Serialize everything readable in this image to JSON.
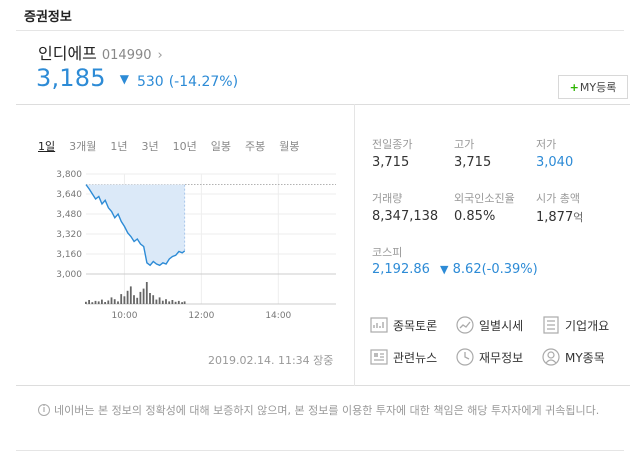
{
  "section_title": "증권정보",
  "stock": {
    "name": "인디에프",
    "code": "014990",
    "price": "3,185",
    "change": "530",
    "change_pct": "(-14.27%)"
  },
  "my_button_label": "MY등록",
  "tabs": [
    "1일",
    "3개월",
    "1년",
    "3년",
    "10년",
    "일봉",
    "주봉",
    "월봉"
  ],
  "timestamp": "2019.02.14. 11:34 장중",
  "info": {
    "prev_close": {
      "label": "전일종가",
      "value": "3,715"
    },
    "high": {
      "label": "고가",
      "value": "3,715"
    },
    "low": {
      "label": "저가",
      "value": "3,040"
    },
    "volume": {
      "label": "거래량",
      "value": "8,347,138"
    },
    "foreign": {
      "label": "외국인소진율",
      "value": "0.85%"
    },
    "market_cap": {
      "label": "시가 총액",
      "value": "1,877",
      "unit": "억"
    },
    "kospi": {
      "label": "코스피",
      "value": "2,192.86",
      "change": "8.62(-0.39%)"
    }
  },
  "links": [
    {
      "label": "종목토론",
      "icon": "discussion-icon"
    },
    {
      "label": "일별시세",
      "icon": "trend-icon"
    },
    {
      "label": "기업개요",
      "icon": "document-list-icon"
    },
    {
      "label": "관련뉴스",
      "icon": "news-icon"
    },
    {
      "label": "재무정보",
      "icon": "clock-icon"
    },
    {
      "label": "MY종목",
      "icon": "person-icon"
    }
  ],
  "notice": "네이버는 본 정보의 정확성에 대해 보증하지 않으며, 본 정보를 이용한 투자에 대한 책임은 해당 투자자에게 귀속됩니다.",
  "colors": {
    "down": "#2d8bd6",
    "add": "#2db400",
    "area": "#dbe9f8"
  },
  "chart_data": {
    "type": "area",
    "y_ticks": [
      "3,800",
      "3,640",
      "3,480",
      "3,320",
      "3,160",
      "3,000"
    ],
    "x_ticks": [
      "10:00",
      "12:00",
      "14:00"
    ],
    "ylim": [
      3000,
      3800
    ],
    "prev_close": 3715,
    "x": [
      "09:00",
      "09:05",
      "09:10",
      "09:15",
      "09:20",
      "09:25",
      "09:30",
      "09:35",
      "09:40",
      "09:45",
      "09:50",
      "09:55",
      "10:00",
      "10:05",
      "10:10",
      "10:15",
      "10:20",
      "10:25",
      "10:30",
      "10:35",
      "10:40",
      "10:45",
      "10:50",
      "10:55",
      "11:00",
      "11:05",
      "11:10",
      "11:15",
      "11:20",
      "11:25",
      "11:30",
      "11:34"
    ],
    "y": [
      3715,
      3680,
      3640,
      3600,
      3620,
      3560,
      3590,
      3530,
      3500,
      3450,
      3480,
      3420,
      3380,
      3330,
      3300,
      3260,
      3280,
      3240,
      3220,
      3090,
      3070,
      3100,
      3080,
      3070,
      3090,
      3080,
      3120,
      3140,
      3150,
      3180,
      3170,
      3185
    ],
    "volume": [
      10,
      18,
      8,
      14,
      12,
      20,
      9,
      16,
      30,
      22,
      12,
      45,
      35,
      60,
      80,
      40,
      28,
      55,
      70,
      100,
      50,
      40,
      20,
      30,
      15,
      22,
      12,
      18,
      10,
      14,
      8,
      12
    ]
  }
}
